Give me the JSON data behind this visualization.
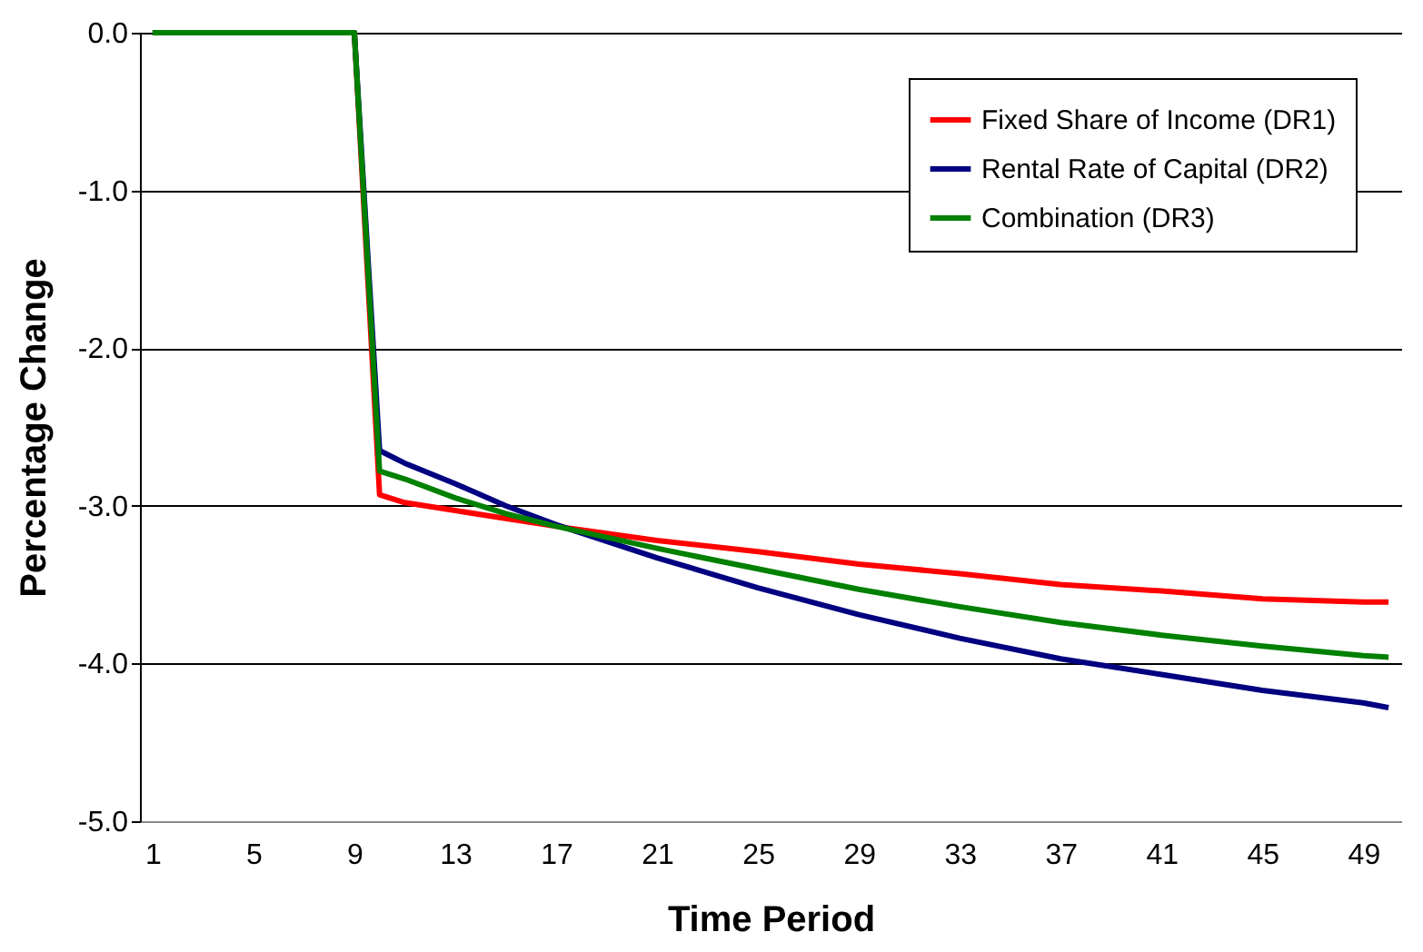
{
  "chart_data": {
    "type": "line",
    "xlabel": "Time Period",
    "ylabel": "Percentage Change",
    "xlim": [
      0.5,
      50.5
    ],
    "xticks": [
      1,
      5,
      9,
      13,
      17,
      21,
      25,
      29,
      33,
      37,
      41,
      45,
      49
    ],
    "ylim": [
      -5,
      0
    ],
    "yticks": [
      {
        "value": 0,
        "label": "0.0"
      },
      {
        "value": -1,
        "label": "-1.0"
      },
      {
        "value": -2,
        "label": "-2.0"
      },
      {
        "value": -3,
        "label": "-3.0"
      },
      {
        "value": -4,
        "label": "-4.0"
      },
      {
        "value": -5,
        "label": "-5.0"
      }
    ],
    "grid": "y",
    "legend": "top right",
    "marker": "none",
    "line_style": "solid",
    "series": [
      {
        "name": "Fixed Share of Income (DR1)",
        "color": "#ff0000",
        "x": [
          1,
          9,
          10,
          11,
          13,
          15,
          17,
          21,
          25,
          29,
          33,
          37,
          41,
          45,
          49,
          50
        ],
        "values": [
          0,
          0,
          -2.93,
          -2.98,
          -3.03,
          -3.08,
          -3.13,
          -3.22,
          -3.29,
          -3.37,
          -3.43,
          -3.5,
          -3.54,
          -3.59,
          -3.61,
          -3.61
        ]
      },
      {
        "name": "Rental Rate of Capital (DR2)",
        "color": "#000080",
        "x": [
          1,
          9,
          10,
          11,
          13,
          15,
          17,
          21,
          25,
          29,
          33,
          37,
          41,
          45,
          49,
          50
        ],
        "values": [
          0,
          0,
          -2.65,
          -2.73,
          -2.86,
          -3.0,
          -3.12,
          -3.33,
          -3.52,
          -3.69,
          -3.84,
          -3.97,
          -4.07,
          -4.17,
          -4.25,
          -4.28
        ]
      },
      {
        "name": "Combination (DR3)",
        "color": "#008000",
        "x": [
          1,
          9,
          10,
          11,
          13,
          15,
          17,
          21,
          25,
          29,
          33,
          37,
          41,
          45,
          49,
          50
        ],
        "values": [
          0,
          0,
          -2.78,
          -2.83,
          -2.95,
          -3.05,
          -3.13,
          -3.27,
          -3.4,
          -3.53,
          -3.64,
          -3.74,
          -3.82,
          -3.89,
          -3.95,
          -3.96
        ]
      }
    ]
  }
}
